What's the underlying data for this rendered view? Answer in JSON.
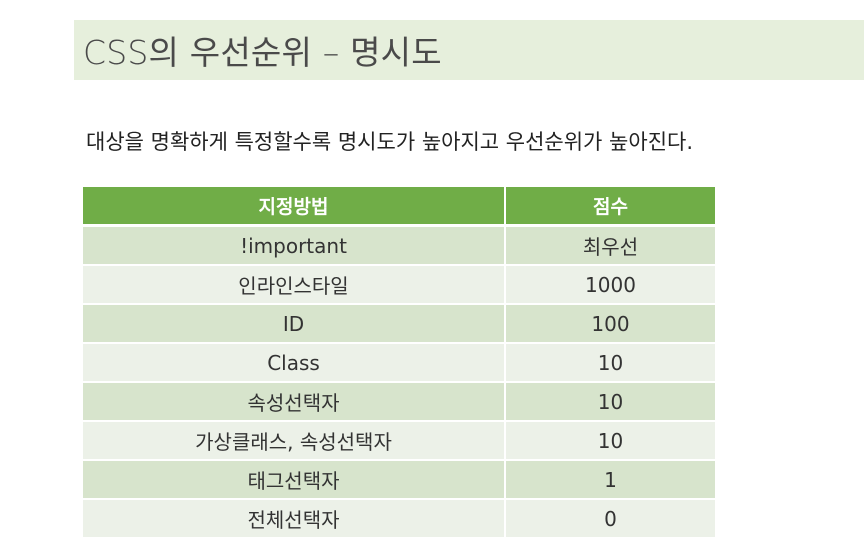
{
  "title": "CSS의 우선순위 – 명시도",
  "description": "대상을 명확하게 특정할수록 명시도가 높아지고 우선순위가 높아진다.",
  "table": {
    "headers": [
      "지정방법",
      "점수"
    ],
    "rows": [
      [
        "!important",
        "최우선"
      ],
      [
        "인라인스타일",
        "1000"
      ],
      [
        "ID",
        "100"
      ],
      [
        "Class",
        "10"
      ],
      [
        "속성선택자",
        "10"
      ],
      [
        "가상클래스, 속성선택자",
        "10"
      ],
      [
        "태그선택자",
        "1"
      ],
      [
        "전체선택자",
        "0"
      ]
    ]
  },
  "colors": {
    "title_background": "#e6efdc",
    "header_background": "#70ad47",
    "row_odd": "#d7e4cc",
    "row_even": "#ecf1e8"
  }
}
